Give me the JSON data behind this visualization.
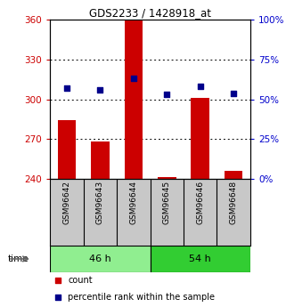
{
  "title": "GDS2233 / 1428918_at",
  "samples": [
    "GSM96642",
    "GSM96643",
    "GSM96644",
    "GSM96645",
    "GSM96646",
    "GSM96648"
  ],
  "count_values": [
    284,
    268,
    360,
    241,
    301,
    246
  ],
  "percentile_values": [
    57,
    56,
    63,
    53,
    58,
    54
  ],
  "groups": [
    {
      "label": "46 h",
      "color": "#90ee90",
      "samples": [
        0,
        1,
        2
      ]
    },
    {
      "label": "54 h",
      "color": "#32cd32",
      "samples": [
        3,
        4,
        5
      ]
    }
  ],
  "ylim_left": [
    240,
    360
  ],
  "ylim_right": [
    0,
    100
  ],
  "yticks_left": [
    240,
    270,
    300,
    330,
    360
  ],
  "yticks_right": [
    0,
    25,
    50,
    75,
    100
  ],
  "bar_color": "#cc0000",
  "dot_color": "#00008b",
  "bar_width": 0.55,
  "background_color": "#ffffff",
  "plot_bg_color": "#ffffff",
  "label_color_left": "#cc0000",
  "label_color_right": "#0000cc",
  "legend_items": [
    "count",
    "percentile rank within the sample"
  ],
  "grid_yticks": [
    270,
    300,
    330
  ]
}
